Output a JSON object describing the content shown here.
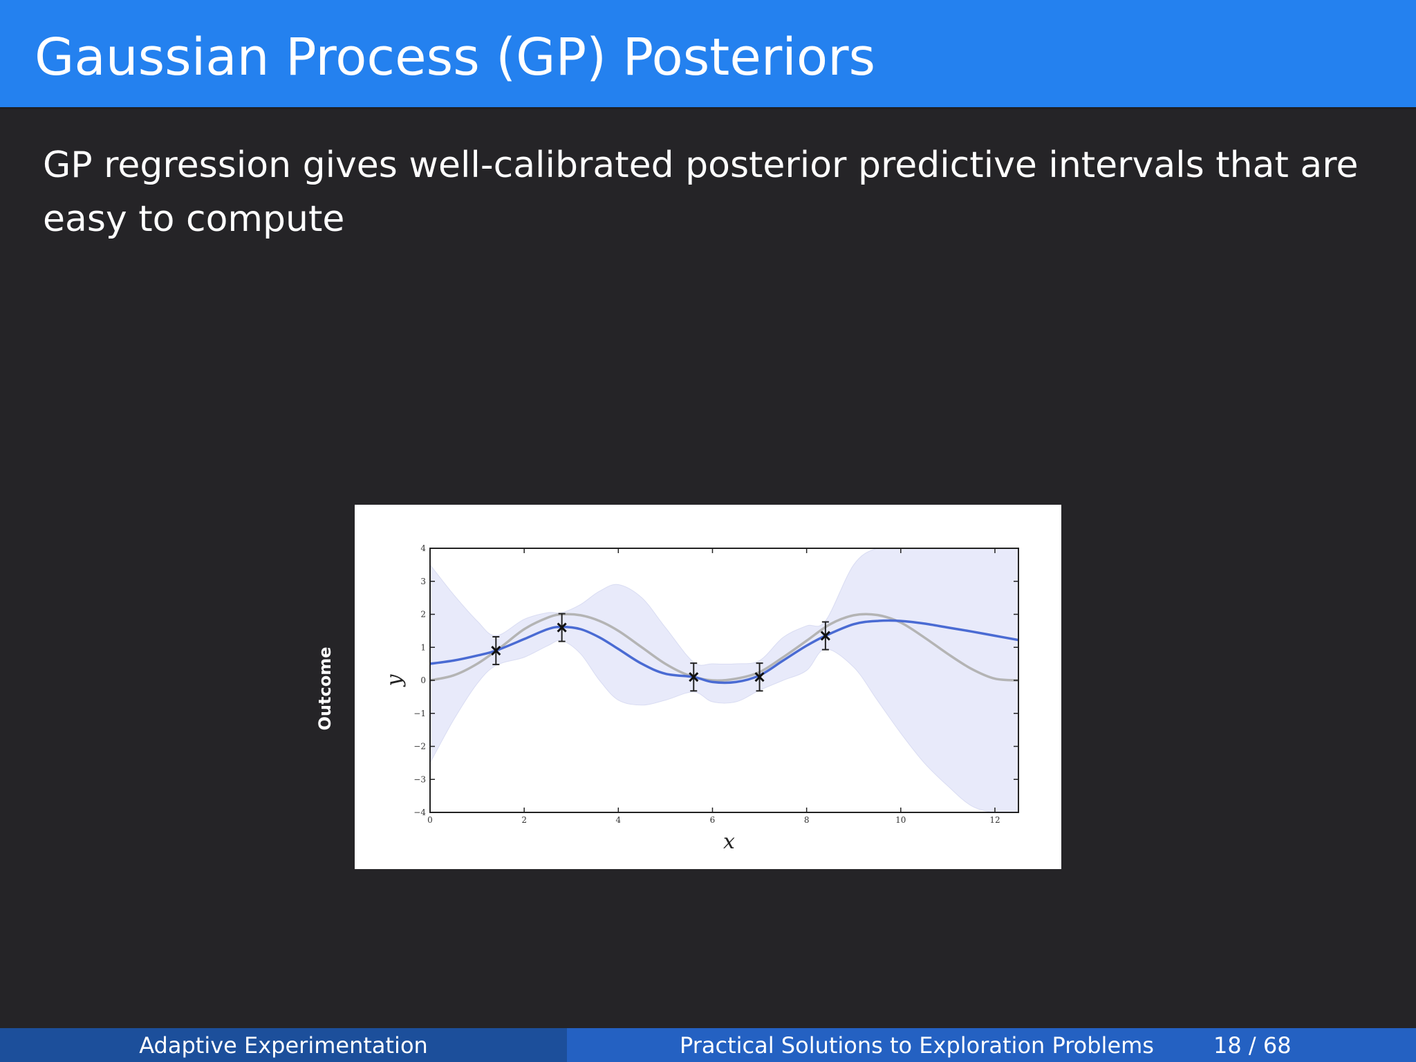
{
  "slide": {
    "title": "Gaussian Process (GP) Posteriors",
    "body": "GP regression gives well-calibrated posterior predictive intervals that are easy to compute",
    "side_label": "Outcome"
  },
  "footer": {
    "left": "Adaptive Experimentation",
    "center": "Practical Solutions to Exploration Problems",
    "page": "18 / 68"
  },
  "colors": {
    "title_bar": "#2481ef",
    "background": "#252427",
    "footer_left": "#1c4f9b",
    "footer_right": "#2461c2",
    "posterior_mean": "#4a6bd3",
    "true_function": "#b4b4b4",
    "interval_fill": "#e8eafa"
  },
  "chart_data": {
    "type": "line",
    "title": "",
    "xlabel": "x",
    "ylabel": "y",
    "xlim": [
      0,
      12.5
    ],
    "ylim": [
      -4,
      4
    ],
    "xticks": [
      "0",
      "2",
      "4",
      "6",
      "8",
      "10",
      "12"
    ],
    "yticks": [
      "4",
      "3",
      "2",
      "1",
      "0",
      "−1",
      "−2",
      "−3",
      "−4"
    ],
    "series": [
      {
        "role": "true function",
        "x": [
          0,
          0.5,
          1,
          1.5,
          2,
          2.5,
          2.8,
          3.2,
          3.6,
          4,
          4.5,
          5,
          5.5,
          6,
          6.5,
          7,
          7.5,
          8,
          8.5,
          9,
          9.5,
          10,
          10.5,
          11,
          11.5,
          12,
          12.5
        ],
        "y": [
          0.0,
          0.15,
          0.5,
          1.0,
          1.55,
          1.9,
          2.0,
          1.97,
          1.8,
          1.5,
          1.0,
          0.5,
          0.15,
          0.0,
          0.05,
          0.25,
          0.7,
          1.2,
          1.7,
          1.97,
          1.98,
          1.75,
          1.3,
          0.8,
          0.35,
          0.05,
          0.0
        ]
      },
      {
        "role": "posterior mean",
        "x": [
          0,
          0.5,
          1,
          1.4,
          2,
          2.5,
          2.8,
          3.2,
          3.6,
          4,
          4.5,
          5,
          5.6,
          6,
          6.5,
          7,
          7.5,
          8,
          8.4,
          9,
          9.5,
          10,
          10.5,
          11,
          11.5,
          12,
          12.5
        ],
        "y": [
          0.5,
          0.6,
          0.75,
          0.9,
          1.25,
          1.55,
          1.62,
          1.55,
          1.3,
          0.95,
          0.5,
          0.2,
          0.1,
          -0.05,
          -0.05,
          0.15,
          0.6,
          1.05,
          1.35,
          1.7,
          1.8,
          1.8,
          1.72,
          1.6,
          1.48,
          1.35,
          1.22
        ]
      }
    ],
    "interval": {
      "x": [
        0,
        0.5,
        1,
        1.4,
        2,
        2.5,
        2.8,
        3.2,
        3.6,
        4,
        4.5,
        5,
        5.6,
        6,
        6.5,
        7,
        7.5,
        8,
        8.4,
        9,
        9.5,
        10,
        10.5,
        11,
        11.5,
        12,
        12.5
      ],
      "upper": [
        3.5,
        2.6,
        1.8,
        1.35,
        1.85,
        2.05,
        2.05,
        2.3,
        2.7,
        2.9,
        2.5,
        1.6,
        0.55,
        0.5,
        0.5,
        0.6,
        1.3,
        1.65,
        1.8,
        3.5,
        4.0,
        4.0,
        4.0,
        4.0,
        4.0,
        4.0,
        4.0
      ],
      "lower": [
        -2.5,
        -1.2,
        -0.1,
        0.45,
        0.7,
        1.05,
        1.2,
        0.8,
        0.0,
        -0.6,
        -0.75,
        -0.6,
        -0.35,
        -0.65,
        -0.65,
        -0.3,
        0.0,
        0.3,
        0.95,
        0.4,
        -0.6,
        -1.6,
        -2.5,
        -3.2,
        -3.8,
        -4.0,
        -4.0
      ]
    },
    "observations": {
      "x": [
        1.4,
        2.8,
        5.6,
        7.0,
        8.4
      ],
      "y": [
        0.9,
        1.6,
        0.1,
        0.1,
        1.35
      ],
      "error": [
        0.42,
        0.42,
        0.42,
        0.42,
        0.42
      ]
    },
    "grid": false,
    "legend": "none"
  }
}
